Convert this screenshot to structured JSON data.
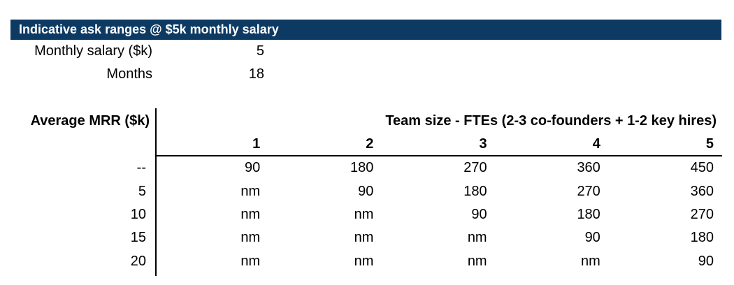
{
  "title_bar": {
    "text": "Indicative ask ranges @ $5k monthly salary",
    "bg_color": "#0d3a63",
    "text_color": "#ffffff"
  },
  "params": [
    {
      "label": "Monthly salary ($k)",
      "value": "5"
    },
    {
      "label": "Months",
      "value": "18"
    }
  ],
  "chart_data": {
    "type": "table",
    "title": "Indicative ask ranges @ $5k monthly salary",
    "row_axis_label": "Average MRR ($k)",
    "col_axis_label": "Team size - FTEs (2-3 co-founders + 1-2 key hires)",
    "column_headers": [
      "1",
      "2",
      "3",
      "4",
      "5"
    ],
    "row_headers": [
      "--",
      "5",
      "10",
      "15",
      "20"
    ],
    "rows": [
      [
        "90",
        "180",
        "270",
        "360",
        "450"
      ],
      [
        "nm",
        "90",
        "180",
        "270",
        "360"
      ],
      [
        "nm",
        "nm",
        "90",
        "180",
        "270"
      ],
      [
        "nm",
        "nm",
        "nm",
        "90",
        "180"
      ],
      [
        "nm",
        "nm",
        "nm",
        "nm",
        "90"
      ]
    ]
  }
}
